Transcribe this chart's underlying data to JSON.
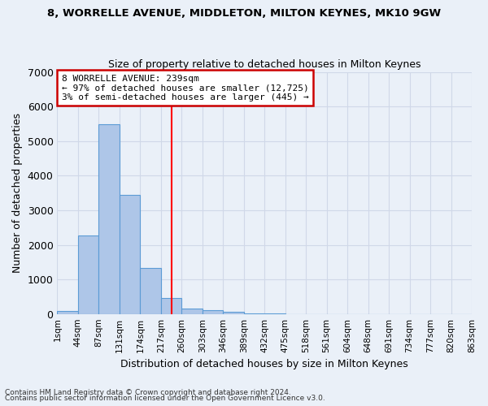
{
  "title1": "8, WORRELLE AVENUE, MIDDLETON, MILTON KEYNES, MK10 9GW",
  "title2": "Size of property relative to detached houses in Milton Keynes",
  "xlabel": "Distribution of detached houses by size in Milton Keynes",
  "ylabel": "Number of detached properties",
  "footnote1": "Contains HM Land Registry data © Crown copyright and database right 2024.",
  "footnote2": "Contains public sector information licensed under the Open Government Licence v3.0.",
  "bar_values": [
    80,
    2280,
    5480,
    3450,
    1320,
    470,
    160,
    100,
    65,
    10,
    5,
    3,
    2,
    1,
    1,
    0,
    0,
    0,
    0,
    0
  ],
  "bin_labels": [
    "1sqm",
    "44sqm",
    "87sqm",
    "131sqm",
    "174sqm",
    "217sqm",
    "260sqm",
    "303sqm",
    "346sqm",
    "389sqm",
    "432sqm",
    "475sqm",
    "518sqm",
    "561sqm",
    "604sqm",
    "648sqm",
    "691sqm",
    "734sqm",
    "777sqm",
    "820sqm",
    "863sqm"
  ],
  "bar_color": "#aec6e8",
  "bar_edge_color": "#5b9bd5",
  "grid_color": "#d0d8e8",
  "background_color": "#eaf0f8",
  "annotation_text": "8 WORRELLE AVENUE: 239sqm\n← 97% of detached houses are smaller (12,725)\n3% of semi-detached houses are larger (445) →",
  "annotation_box_color": "#ffffff",
  "annotation_box_edge": "#cc0000",
  "ylim": [
    0,
    7000
  ],
  "yticks": [
    0,
    1000,
    2000,
    3000,
    4000,
    5000,
    6000,
    7000
  ],
  "red_line_bin": 5.51
}
